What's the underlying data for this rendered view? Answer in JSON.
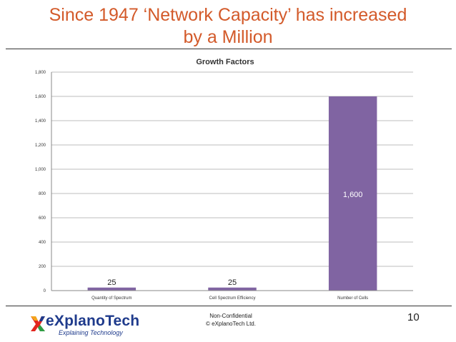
{
  "slide": {
    "title_line1": "Since 1947 ‘Network Capacity’ has increased",
    "title_line2": "by a Million",
    "footer_line1": "Non-Confidential",
    "footer_line2": "© eXplanoTech Ltd.",
    "page_number": "10",
    "logo_name": "eXplanoTech",
    "logo_tagline": "Explaining Technology"
  },
  "colors": {
    "title": "#d35a2a",
    "bar": "#8064a2",
    "logo": "#1f3b8c"
  },
  "chart_data": {
    "type": "bar",
    "title": "Growth Factors",
    "categories": [
      "Quantity of Spectrum",
      "Cell Spectrum Efficiency",
      "Number of Cells"
    ],
    "values": [
      25,
      25,
      1600
    ],
    "data_labels": [
      "25",
      "25",
      "1,600"
    ],
    "yticks": [
      0,
      200,
      400,
      600,
      800,
      1000,
      1200,
      1400,
      1600,
      1800
    ],
    "ytick_labels": [
      "0",
      "200",
      "400",
      "600",
      "800",
      "1,000",
      "1,200",
      "1,400",
      "1,600",
      "1,800"
    ],
    "ylim": [
      0,
      1800
    ],
    "xlabel": "",
    "ylabel": "",
    "grid": true,
    "legend": "none"
  }
}
